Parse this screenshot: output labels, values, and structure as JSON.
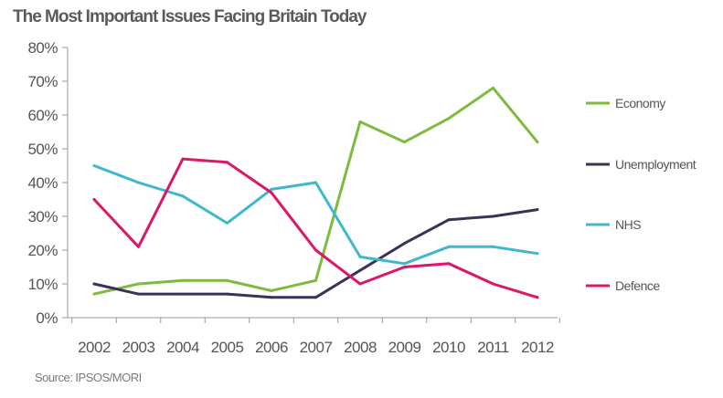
{
  "chart_data": {
    "type": "line",
    "title": "The Most Important Issues Facing Britain Today",
    "source": "Source: IPSOS/MORI",
    "x": [
      "2002",
      "2003",
      "2004",
      "2005",
      "2006",
      "2007",
      "2008",
      "2009",
      "2010",
      "2011",
      "2012"
    ],
    "ylim": [
      0,
      80
    ],
    "yticks": [
      0,
      10,
      20,
      30,
      40,
      50,
      60,
      70,
      80
    ],
    "ytick_labels": [
      "0%",
      "10%",
      "20%",
      "30%",
      "40%",
      "50%",
      "60%",
      "70%",
      "80%"
    ],
    "grid": false,
    "legend_position": "right",
    "series": [
      {
        "name": "Economy",
        "color": "#7dbb3f",
        "values": [
          7,
          10,
          11,
          11,
          8,
          11,
          58,
          52,
          59,
          68,
          52
        ]
      },
      {
        "name": "Unemployment",
        "color": "#3d3157",
        "values": [
          10,
          7,
          7,
          7,
          6,
          6,
          14,
          22,
          29,
          30,
          32
        ]
      },
      {
        "name": "NHS",
        "color": "#3fb8cf",
        "values": [
          45,
          40,
          36,
          28,
          38,
          40,
          18,
          16,
          21,
          21,
          19
        ]
      },
      {
        "name": "Defence",
        "color": "#dc1767",
        "values": [
          35,
          21,
          47,
          46,
          37,
          20,
          10,
          15,
          16,
          10,
          6
        ]
      }
    ]
  }
}
